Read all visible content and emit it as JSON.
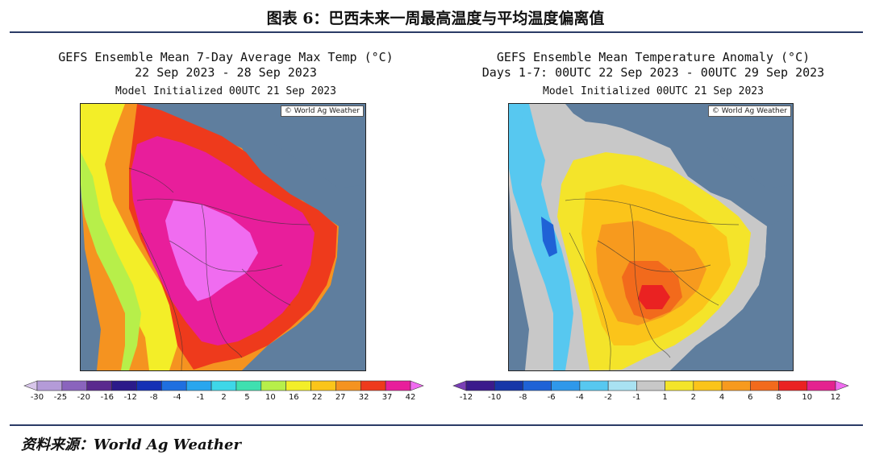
{
  "figure": {
    "title": "图表 6：巴西未来一周最高温度与平均温度偏离值",
    "source": "资料来源：World Ag Weather"
  },
  "left_panel": {
    "title_line1": "GEFS Ensemble Mean 7-Day Average Max Temp (°C)",
    "title_line2": "22 Sep 2023 - 28 Sep 2023",
    "title_line3": "Model Initialized 00UTC 21 Sep 2023",
    "credit": "© World Ag Weather",
    "colorbar_ticks": [
      "-30",
      "-25",
      "-20",
      "-16",
      "-12",
      "-8",
      "-4",
      "-1",
      "2",
      "5",
      "10",
      "16",
      "22",
      "27",
      "32",
      "37",
      "42"
    ],
    "colorbar_colors": [
      "#d8c6ea",
      "#b49bd8",
      "#8a64bd",
      "#5a2a8e",
      "#2b1a8a",
      "#1530b5",
      "#1f6fe0",
      "#29a6ee",
      "#3ed7e8",
      "#3fe0b0",
      "#b7ef4a",
      "#f3ee28",
      "#fbc51a",
      "#f59320",
      "#ee3a1c",
      "#e81e9b",
      "#f06cf0"
    ],
    "ocean_color": "#5f7e9e"
  },
  "right_panel": {
    "title_line1": "GEFS Ensemble Mean Temperature Anomaly (°C)",
    "title_line2": "Days 1-7: 00UTC 22 Sep 2023 - 00UTC 29 Sep 2023",
    "title_line3": "Model Initialized 00UTC 21 Sep 2023",
    "credit": "© World Ag Weather",
    "colorbar_ticks": [
      "-12",
      "-10",
      "-8",
      "-6",
      "-4",
      "-2",
      "-1",
      "1",
      "2",
      "4",
      "6",
      "8",
      "10",
      "12"
    ],
    "colorbar_colors": [
      "#7a3fb6",
      "#3b1b8c",
      "#1636a8",
      "#1f62d6",
      "#2f98ea",
      "#57c8f0",
      "#a9e2f2",
      "#c8c8c8",
      "#f4e42a",
      "#fbc41a",
      "#f79a1e",
      "#f26a1c",
      "#ea2222",
      "#e4228f",
      "#f06cf0"
    ],
    "ocean_color": "#5f7e9e"
  }
}
